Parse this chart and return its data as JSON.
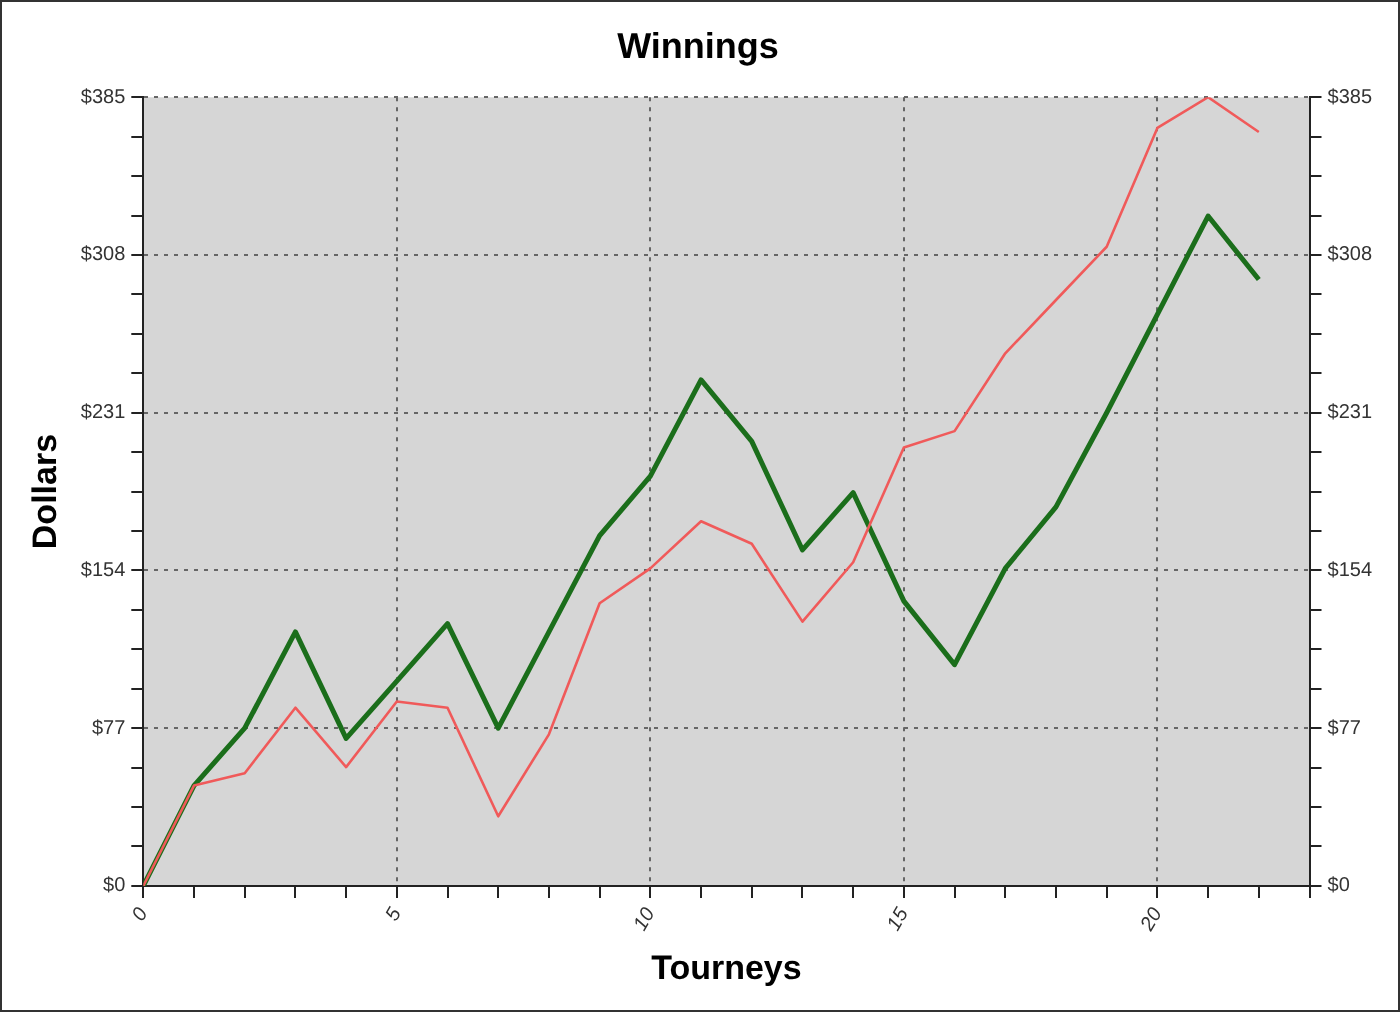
{
  "chart_data": {
    "type": "line",
    "title": "Winnings",
    "xlabel": "Tourneys",
    "ylabel": "Dollars",
    "x": [
      0,
      1,
      2,
      3,
      4,
      5,
      6,
      7,
      8,
      9,
      10,
      11,
      12,
      13,
      14,
      15,
      16,
      17,
      18,
      19,
      20,
      21,
      22
    ],
    "series": [
      {
        "color": "#f05a5a",
        "values": [
          0,
          49,
          55,
          87,
          58,
          90,
          87,
          34,
          74,
          138,
          155,
          178,
          167,
          129,
          158,
          214,
          222,
          260,
          286,
          312,
          370,
          385,
          368
        ]
      },
      {
        "color": "#1b6e1b",
        "values": [
          0,
          49,
          77,
          124,
          72,
          100,
          128,
          77,
          124,
          171,
          200,
          247,
          217,
          164,
          192,
          139,
          108,
          155,
          185,
          231,
          279,
          327,
          296
        ]
      }
    ],
    "xlim": [
      0,
      23
    ],
    "xticks": [
      0,
      {
        "value": 1,
        "label": null
      },
      {
        "value": 2,
        "label": null
      },
      {
        "value": 3,
        "label": null
      },
      {
        "value": 4,
        "label": null
      },
      5,
      {
        "value": 6,
        "label": null
      },
      {
        "value": 7,
        "label": null
      },
      {
        "value": 8,
        "label": null
      },
      {
        "value": 9,
        "label": null
      },
      10,
      {
        "value": 11,
        "label": null
      },
      {
        "value": 12,
        "label": null
      },
      {
        "value": 13,
        "label": null
      },
      {
        "value": 14,
        "label": null
      },
      15,
      {
        "value": 16,
        "label": null
      },
      {
        "value": 17,
        "label": null
      },
      {
        "value": 18,
        "label": null
      },
      {
        "value": 19,
        "label": null
      },
      20,
      {
        "value": 21,
        "label": null
      },
      {
        "value": 22,
        "label": null
      },
      {
        "value": 23,
        "label": null
      }
    ],
    "ylim": [
      0,
      385
    ],
    "yticks": [
      {
        "value": 0,
        "label": "$0"
      },
      {
        "value": 19.25,
        "label": null
      },
      {
        "value": 38.5,
        "label": null
      },
      {
        "value": 57.75,
        "label": null
      },
      {
        "value": 77,
        "label": "$77"
      },
      {
        "value": 96.25,
        "label": null
      },
      {
        "value": 115.5,
        "label": null
      },
      {
        "value": 134.75,
        "label": null
      },
      {
        "value": 154,
        "label": "$154"
      },
      {
        "value": 173.25,
        "label": null
      },
      {
        "value": 192.5,
        "label": null
      },
      {
        "value": 211.75,
        "label": null
      },
      {
        "value": 231,
        "label": "$231"
      },
      {
        "value": 250.25,
        "label": null
      },
      {
        "value": 269.5,
        "label": null
      },
      {
        "value": 288.75,
        "label": null
      },
      {
        "value": 308,
        "label": "$308"
      },
      {
        "value": 327.25,
        "label": null
      },
      {
        "value": 346.5,
        "label": null
      },
      {
        "value": 365.75,
        "label": null
      },
      {
        "value": 385,
        "label": "$385"
      }
    ],
    "y2lim": [
      0,
      385
    ],
    "y2ticks": [
      {
        "value": 0,
        "label": "$0"
      },
      {
        "value": 19.25,
        "label": null
      },
      {
        "value": 38.5,
        "label": null
      },
      {
        "value": 57.75,
        "label": null
      },
      {
        "value": 77,
        "label": "$77"
      },
      {
        "value": 96.25,
        "label": null
      },
      {
        "value": 115.5,
        "label": null
      },
      {
        "value": 134.75,
        "label": null
      },
      {
        "value": 154,
        "label": "$154"
      },
      {
        "value": 173.25,
        "label": null
      },
      {
        "value": 192.5,
        "label": null
      },
      {
        "value": 211.75,
        "label": null
      },
      {
        "value": 231,
        "label": "$231"
      },
      {
        "value": 250.25,
        "label": null
      },
      {
        "value": 269.5,
        "label": null
      },
      {
        "value": 288.75,
        "label": null
      },
      {
        "value": 308,
        "label": "$308"
      },
      {
        "value": 327.25,
        "label": null
      },
      {
        "value": 346.5,
        "label": null
      },
      {
        "value": 365.75,
        "label": null
      },
      {
        "value": 385,
        "label": "$385"
      }
    ],
    "grid": true,
    "marker": "none",
    "line_style": "solid",
    "legend": false
  }
}
